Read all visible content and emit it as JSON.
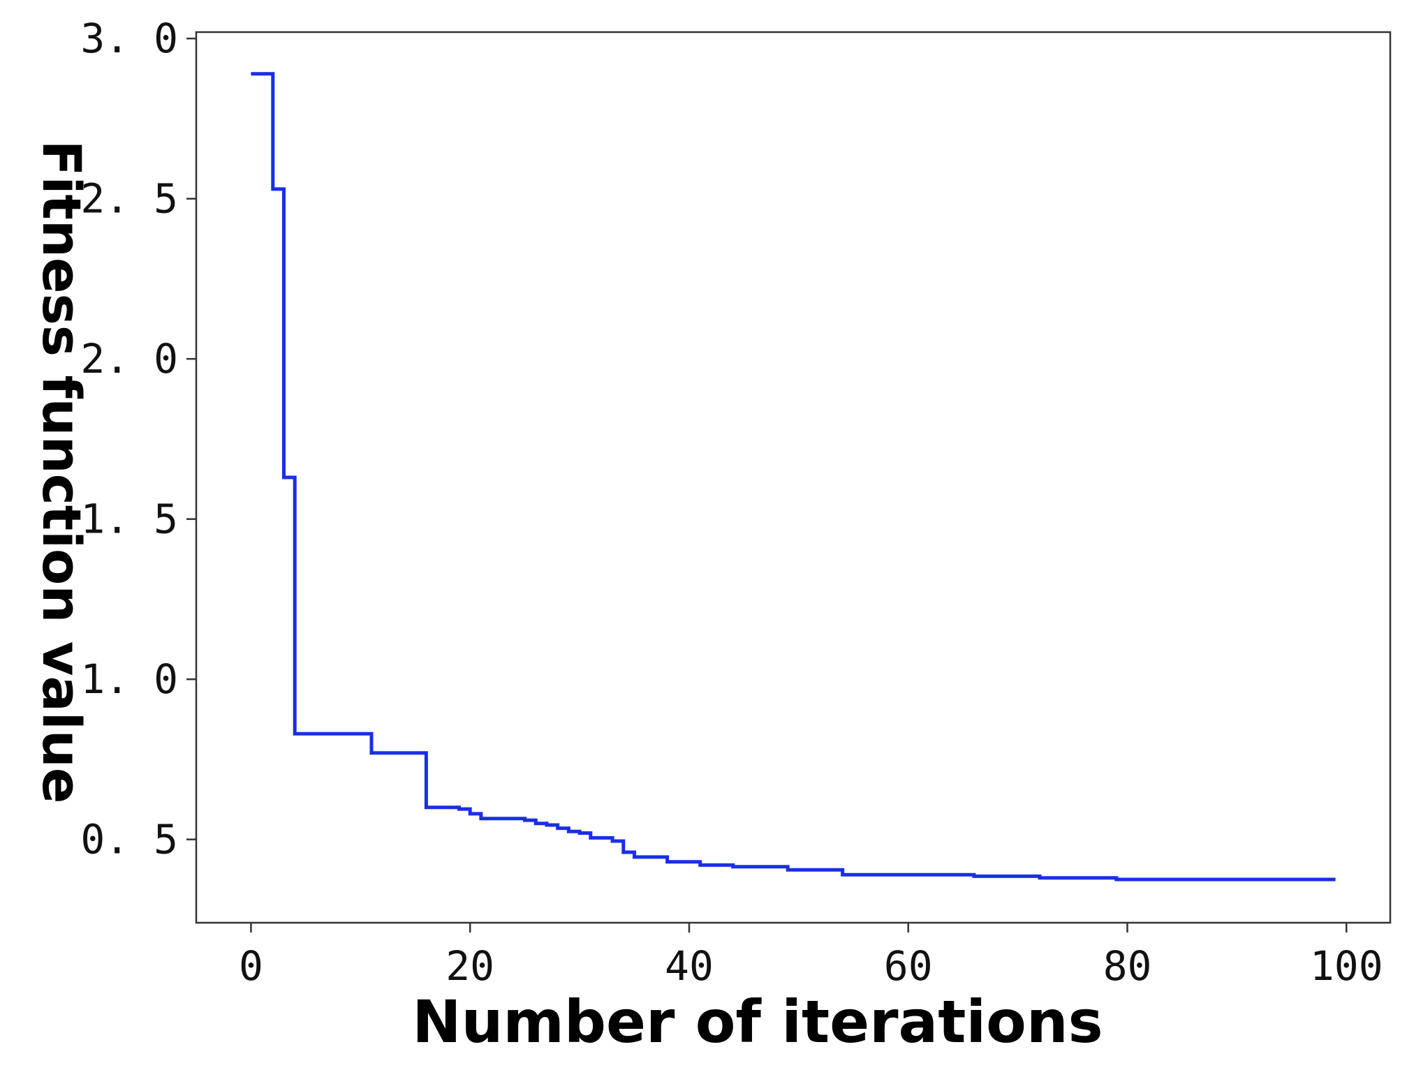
{
  "chart_data": {
    "type": "line",
    "step": true,
    "title": "",
    "xlabel": "Number of iterations",
    "ylabel": "Fitness function value",
    "xlim": [
      -5,
      104
    ],
    "ylim": [
      0.24,
      3.02
    ],
    "xticks": [
      0,
      20,
      40,
      60,
      80,
      100
    ],
    "yticks": [
      0.5,
      1.0,
      1.5,
      2.0,
      2.5,
      3.0
    ],
    "xtick_labels": [
      "0",
      "20",
      "40",
      "60",
      "80",
      "100"
    ],
    "ytick_labels": [
      "0. 5",
      "1. 0",
      "1. 5",
      "2. 0",
      "2. 5",
      "3. 0"
    ],
    "grid": false,
    "line_color": "#1a2ee8",
    "series": [
      {
        "x": [
          0,
          2,
          3,
          4,
          11,
          16,
          19,
          20,
          21,
          25,
          26,
          27,
          28,
          29,
          30,
          31,
          33,
          34,
          35,
          38,
          41,
          44,
          49,
          54,
          66,
          72,
          79,
          87,
          99
        ],
        "y": [
          2.89,
          2.53,
          1.63,
          0.83,
          0.77,
          0.6,
          0.595,
          0.58,
          0.565,
          0.56,
          0.55,
          0.545,
          0.535,
          0.525,
          0.52,
          0.505,
          0.495,
          0.46,
          0.445,
          0.43,
          0.42,
          0.415,
          0.405,
          0.39,
          0.385,
          0.38,
          0.375,
          0.375,
          0.375
        ]
      }
    ]
  }
}
